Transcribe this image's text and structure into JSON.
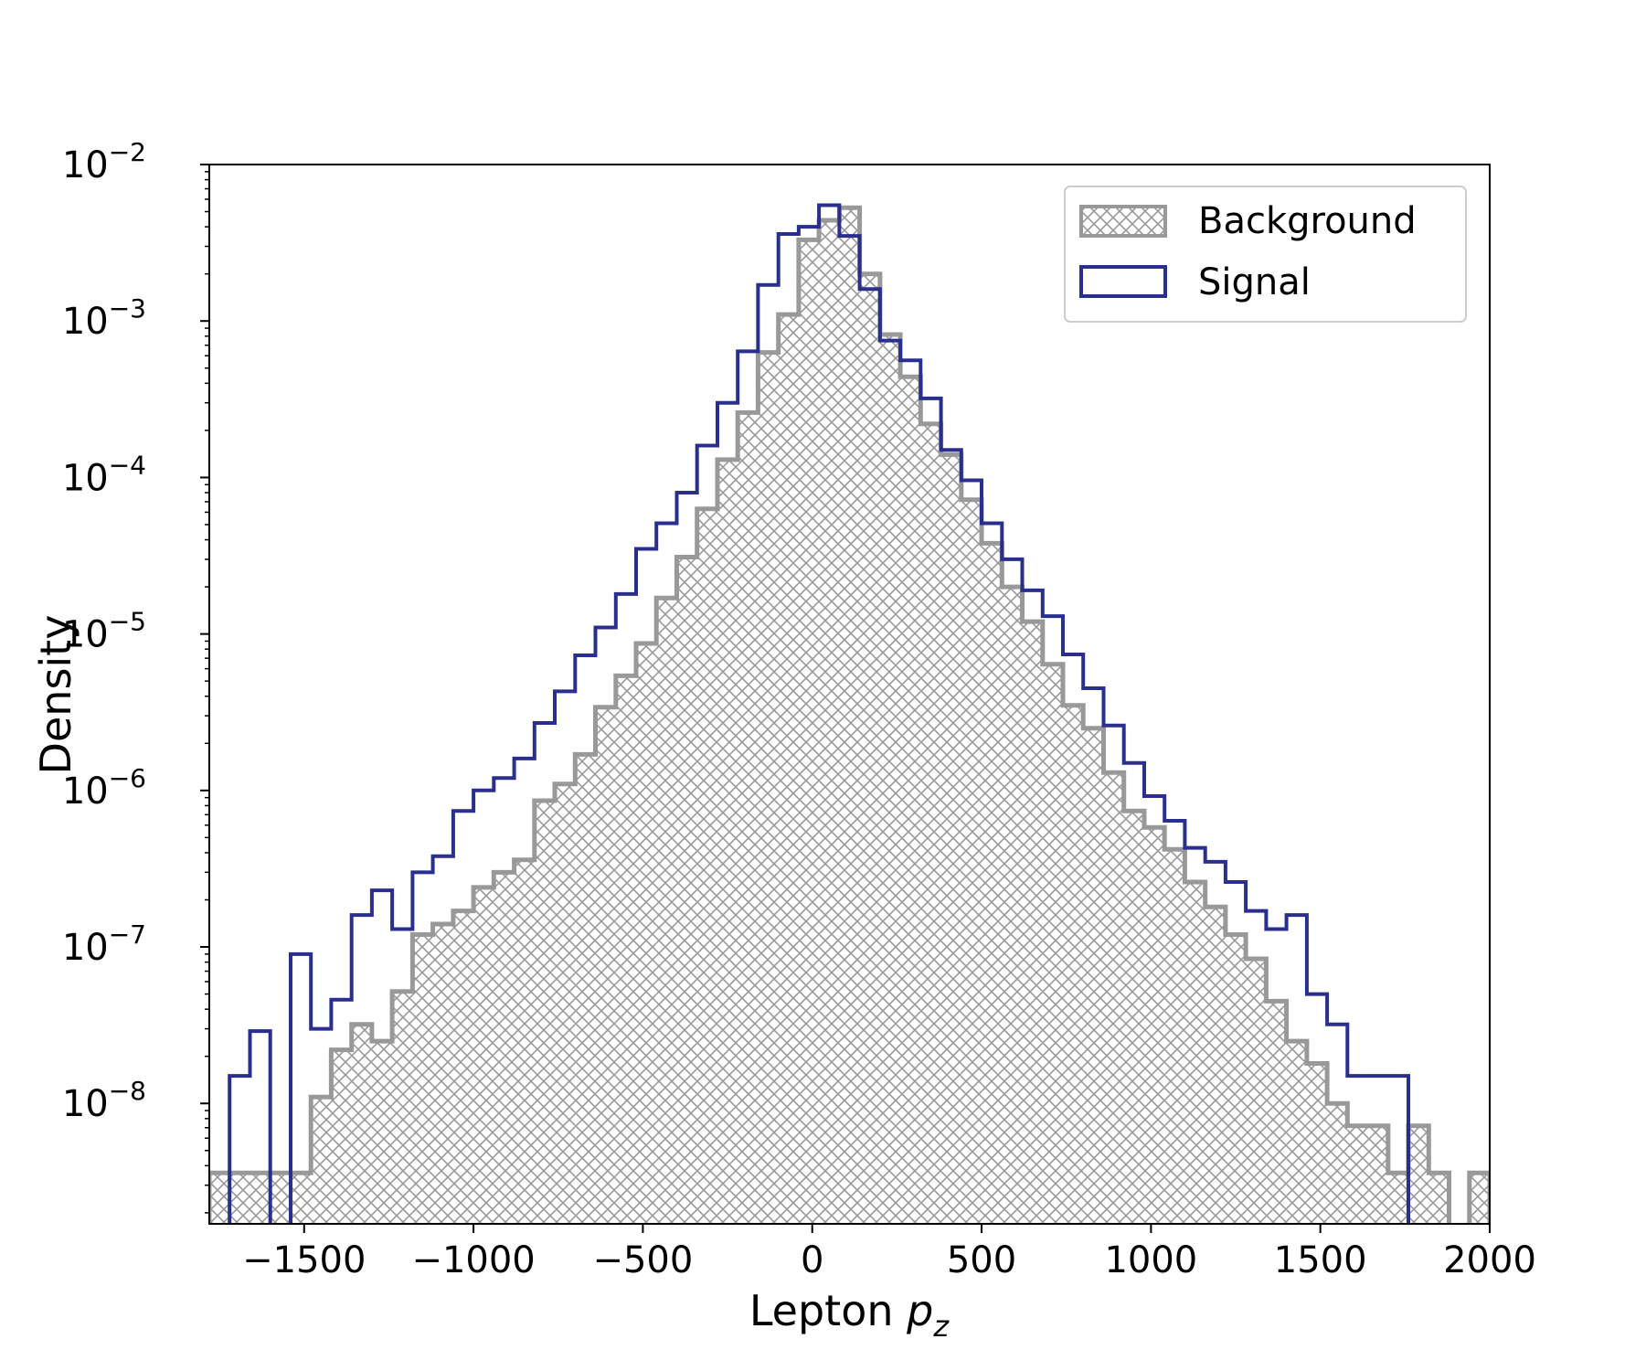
{
  "chart_data": {
    "type": "histogram",
    "title": "",
    "xlabel_text": "Lepton ",
    "xlabel_math": "p",
    "xlabel_sub": "z",
    "ylabel": "Density",
    "xlim": [
      -1780,
      2000
    ],
    "ylim": [
      1.7e-09,
      0.01
    ],
    "yscale": "log",
    "x_ticks": [
      -1500,
      -1000,
      -500,
      0,
      500,
      1000,
      1500,
      2000
    ],
    "x_tick_labels": [
      "−1500",
      "−1000",
      "−500",
      "0",
      "500",
      "1000",
      "1500",
      "2000"
    ],
    "y_ticks": [
      {
        "value": 1e-08,
        "base": "10",
        "exp": "−8"
      },
      {
        "value": 1e-07,
        "base": "10",
        "exp": "−7"
      },
      {
        "value": 1e-06,
        "base": "10",
        "exp": "−6"
      },
      {
        "value": 1e-05,
        "base": "10",
        "exp": "−5"
      },
      {
        "value": 0.0001,
        "base": "10",
        "exp": "−4"
      },
      {
        "value": 0.001,
        "base": "10",
        "exp": "−3"
      },
      {
        "value": 0.01,
        "base": "10",
        "exp": "−2"
      }
    ],
    "bin_edges": [
      -1780,
      -1720,
      -1660,
      -1600,
      -1540,
      -1480,
      -1420,
      -1360,
      -1300,
      -1240,
      -1180,
      -1120,
      -1060,
      -1000,
      -940,
      -880,
      -820,
      -760,
      -700,
      -640,
      -580,
      -520,
      -460,
      -400,
      -340,
      -280,
      -220,
      -160,
      -100,
      -40,
      20,
      80,
      140,
      200,
      260,
      320,
      380,
      440,
      500,
      560,
      620,
      680,
      740,
      800,
      860,
      920,
      980,
      1040,
      1100,
      1160,
      1220,
      1280,
      1340,
      1400,
      1460,
      1520,
      1580,
      1640,
      1700,
      1760,
      1820,
      1880,
      1940,
      2000
    ],
    "legend_position": "upper right",
    "series": [
      {
        "name": "Background",
        "style": "hatched",
        "color": "#999999",
        "values": [
          3.6e-09,
          3.6e-09,
          3.6e-09,
          3.6e-09,
          3.6e-09,
          1.1e-08,
          2.2e-08,
          3.2e-08,
          2.5e-08,
          5.2e-08,
          1.2e-07,
          1.4e-07,
          1.7e-07,
          2.4e-07,
          3e-07,
          3.6e-07,
          8.6e-07,
          1.1e-06,
          1.7e-06,
          3.4e-06,
          5.4e-06,
          8.7e-06,
          1.7e-05,
          3.1e-05,
          6.3e-05,
          0.00013,
          0.00026,
          0.00063,
          0.0011,
          0.0033,
          0.0044,
          0.0053,
          0.002,
          0.00082,
          0.00044,
          0.00022,
          0.00014,
          7.2e-05,
          3.8e-05,
          2e-05,
          1.2e-05,
          6.4e-06,
          3.5e-06,
          2.5e-06,
          1.3e-06,
          7.4e-07,
          5.8e-07,
          4.2e-07,
          2.6e-07,
          1.8e-07,
          1.2e-07,
          8.4e-08,
          4.5e-08,
          2.5e-08,
          1.8e-08,
          1e-08,
          7.2e-09,
          7.2e-09,
          3.6e-09,
          7.2e-09,
          3.6e-09,
          null,
          3.6e-09
        ]
      },
      {
        "name": "Signal",
        "style": "step",
        "color": "#2a2f8f",
        "values": [
          null,
          1.5e-08,
          2.9e-08,
          null,
          9e-08,
          3e-08,
          4.6e-08,
          1.6e-07,
          2.3e-07,
          1.3e-07,
          3e-07,
          3.8e-07,
          7.4e-07,
          1e-06,
          1.2e-06,
          1.6e-06,
          2.7e-06,
          4.3e-06,
          7.3e-06,
          1.1e-05,
          1.8e-05,
          3.5e-05,
          5.1e-05,
          8e-05,
          0.00016,
          0.0003,
          0.00064,
          0.0017,
          0.0036,
          0.004,
          0.0055,
          0.0035,
          0.0016,
          0.00075,
          0.00056,
          0.00032,
          0.00015,
          9.6e-05,
          5.1e-05,
          3e-05,
          1.9e-05,
          1.3e-05,
          7.4e-06,
          4.5e-06,
          2.6e-06,
          1.5e-06,
          9.2e-07,
          6.4e-07,
          4.3e-07,
          3.5e-07,
          2.6e-07,
          1.7e-07,
          1.3e-07,
          1.6e-07,
          5e-08,
          3.2e-08,
          1.5e-08,
          1.5e-08,
          1.5e-08,
          null,
          null,
          null,
          null
        ]
      }
    ]
  }
}
